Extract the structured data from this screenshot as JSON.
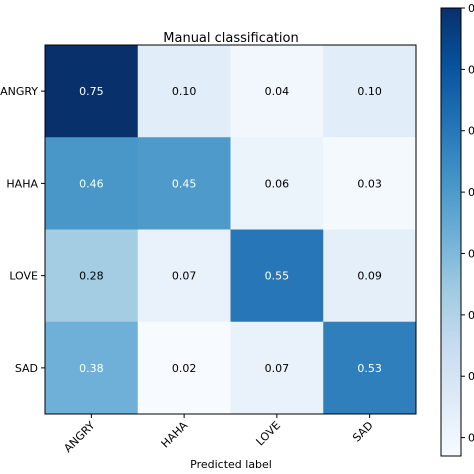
{
  "chart_data": {
    "type": "heatmap",
    "title": "Manual classification",
    "xlabel": "Predicted label",
    "ylabel": "",
    "x_categories": [
      "ANGRY",
      "HAHA",
      "LOVE",
      "SAD"
    ],
    "y_categories": [
      "ANGRY",
      "HAHA",
      "LOVE",
      "SAD"
    ],
    "values": [
      [
        0.75,
        0.1,
        0.04,
        0.1
      ],
      [
        0.46,
        0.45,
        0.06,
        0.03
      ],
      [
        0.28,
        0.07,
        0.55,
        0.09
      ],
      [
        0.38,
        0.02,
        0.07,
        0.53
      ]
    ],
    "value_labels": [
      [
        "0.75",
        "0.10",
        "0.04",
        "0.10"
      ],
      [
        "0.46",
        "0.45",
        "0.06",
        "0.03"
      ],
      [
        "0.28",
        "0.07",
        "0.55",
        "0.09"
      ],
      [
        "0.38",
        "0.02",
        "0.07",
        "0.53"
      ]
    ],
    "colormap": "Blues",
    "colorbar": {
      "tick_labels": [
        "0",
        "0",
        "0",
        "0",
        "0",
        "0",
        "0",
        "0"
      ]
    },
    "grid": false
  }
}
